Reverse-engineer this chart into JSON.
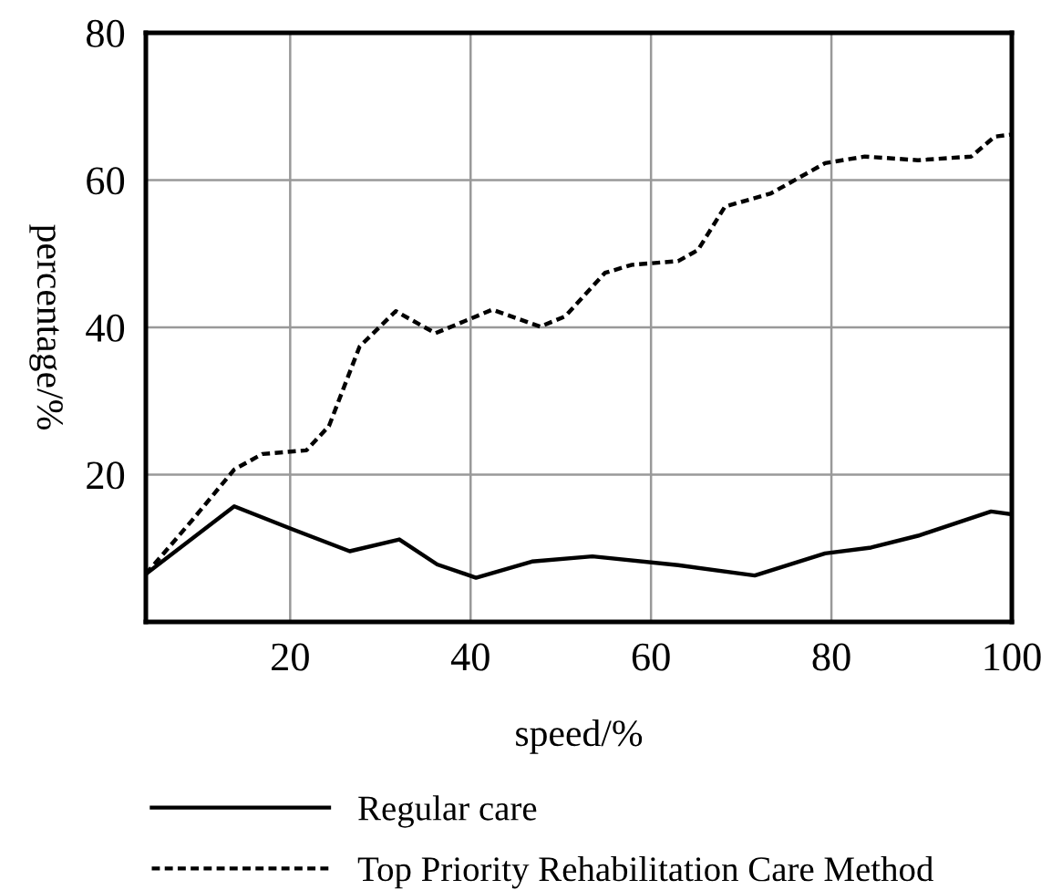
{
  "chart_data": {
    "type": "line",
    "xlabel": "speed/%",
    "ylabel": "percentage/%",
    "xlim": [
      4,
      100
    ],
    "xticks": [
      20,
      40,
      60,
      80,
      100
    ],
    "ylim": [
      0,
      80
    ],
    "yticks": [
      20,
      40,
      60,
      80
    ],
    "grid": true,
    "legend": "bottom",
    "marker": "none",
    "series": [
      {
        "name": "Regular care",
        "color": "#000000",
        "line_style": "solid",
        "x": [
          4,
          13.8,
          20.2,
          26.6,
          32.1,
          36.3,
          40.6,
          46.8,
          53.5,
          63,
          71.5,
          79.3,
          84.4,
          89.6,
          97.7,
          100
        ],
        "values": [
          6.5,
          15.7,
          12.6,
          9.6,
          11.2,
          7.8,
          6.0,
          8.2,
          8.9,
          7.7,
          6.3,
          9.3,
          10.1,
          11.7,
          15,
          14.6
        ]
      },
      {
        "name": "Top Priority Rehabilitation Care Method",
        "color": "#000000",
        "line_style": "dotted",
        "x": [
          4,
          9.2,
          13.8,
          16.9,
          21.8,
          24.3,
          27.7,
          31.7,
          36.1,
          42.4,
          47.7,
          50.5,
          54.9,
          57.9,
          63,
          65.2,
          68.2,
          73.3,
          79.3,
          83.7,
          89.6,
          95.5,
          98.1,
          100
        ],
        "values": [
          6.5,
          13.9,
          20.7,
          22.8,
          23.3,
          26.6,
          37.4,
          42.2,
          39.2,
          42.4,
          40.1,
          41.5,
          47.4,
          48.5,
          49,
          50.5,
          56.4,
          58.2,
          62.3,
          63.2,
          62.7,
          63.2,
          65.9,
          66.2
        ]
      }
    ]
  }
}
